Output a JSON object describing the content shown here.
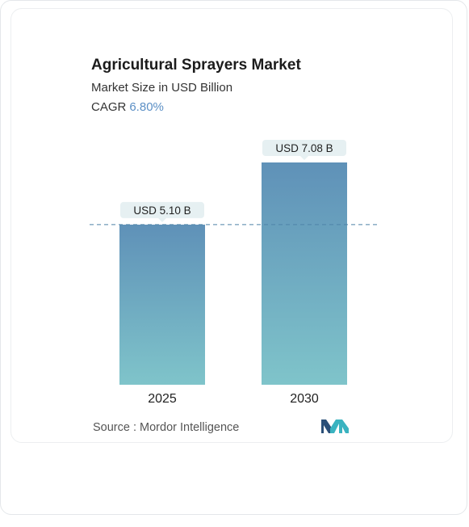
{
  "title": "Agricultural Sprayers Market",
  "subtitle": "Market Size in USD Billion",
  "cagr": {
    "label": "CAGR",
    "value": "6.80%"
  },
  "chart_data": {
    "type": "bar",
    "categories": [
      "2025",
      "2030"
    ],
    "values": [
      5.1,
      7.08
    ],
    "data_labels": [
      "USD 5.10 B",
      "USD 7.08 B"
    ],
    "title": "Agricultural Sprayers Market",
    "subtitle": "Market Size in USD Billion",
    "ylim": [
      0,
      7.08
    ],
    "grid": false,
    "reference_line": 5.1,
    "colors": {
      "bar_top": "#5f91b8",
      "bar_bottom": "#7fc4ca",
      "label_bg": "#e6f0f2",
      "reference_line": "#4f84a8"
    }
  },
  "source": {
    "label": "Source :",
    "name": "Mordor Intelligence"
  },
  "logo": {
    "name": "mordor-intelligence-logo",
    "colors": [
      "#2a4f78",
      "#3ab3c0"
    ]
  }
}
